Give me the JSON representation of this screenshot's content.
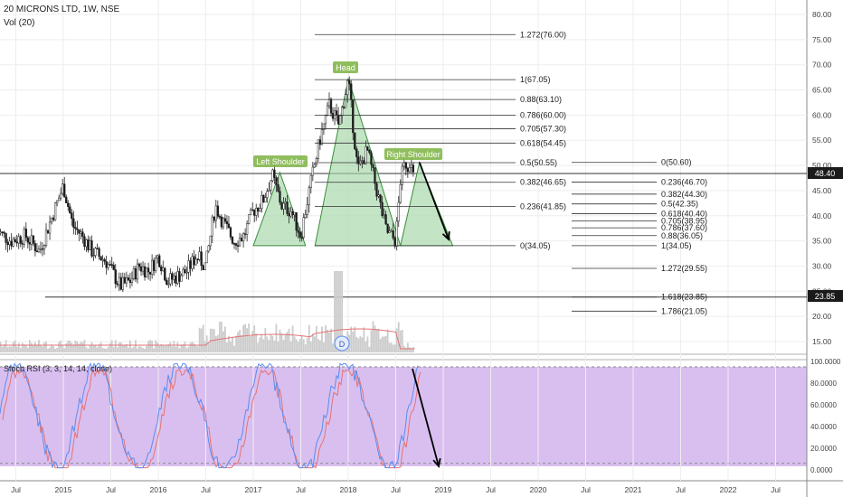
{
  "header": {
    "symbol": "20 MICRONS LTD, 1W, NSE",
    "volume_label": "Vol (20)"
  },
  "stoch_label": "Stoch RSI (3, 3, 14, 14, close)",
  "pattern_labels": {
    "head": "Head",
    "left_shoulder": "Left Shoulder",
    "right_shoulder": "Right Shoulder",
    "dividend_marker": "D"
  },
  "price_badges": [
    {
      "value": 48.4,
      "label": "48.40"
    },
    {
      "value": 23.85,
      "label": "23.85"
    }
  ],
  "chart_data": [
    {
      "type": "line",
      "title": "",
      "ylim": [
        13,
        82
      ],
      "y_ticks": [
        15,
        20,
        25,
        30,
        35,
        40,
        45,
        50,
        55,
        60,
        65,
        70,
        75,
        80
      ],
      "y_tick_labels": [
        "15.00",
        "20.00",
        "25.00",
        "30.00",
        "35.00",
        "40.00",
        "45.00",
        "50.00",
        "55.00",
        "60.00",
        "65.00",
        "70.00",
        "75.00",
        "80.00"
      ],
      "x_labels": [
        "Jul",
        "2015",
        "Jul",
        "2016",
        "Jul",
        "2017",
        "Jul",
        "2018",
        "Jul",
        "2019",
        "Jul",
        "2020",
        "Jul",
        "2021",
        "Jul",
        "2022",
        "Jul"
      ],
      "x_label_years": [
        2014.5,
        2015.0,
        2015.5,
        2016.0,
        2016.5,
        2017.0,
        2017.5,
        2018.0,
        2018.5,
        2019.0,
        2019.5,
        2020.0,
        2020.5,
        2021.0,
        2021.5,
        2022.0,
        2022.5
      ],
      "series": [
        {
          "values_x": [
            2014.3,
            2014.45,
            2014.6,
            2014.75,
            2015.0,
            2015.1,
            2015.2,
            2015.3,
            2015.45,
            2015.6,
            2015.7,
            2015.8,
            2015.9,
            2016.0,
            2016.1,
            2016.2,
            2016.3,
            2016.4,
            2016.5,
            2016.6,
            2016.7,
            2016.8,
            2016.9,
            2017.0,
            2017.1,
            2017.2,
            2017.3,
            2017.4,
            2017.5,
            2017.6,
            2017.7,
            2017.8,
            2017.9,
            2018.0,
            2018.1,
            2018.2,
            2018.3,
            2018.4,
            2018.5,
            2018.55,
            2018.6,
            2018.7
          ],
          "values_y": [
            37,
            35,
            36,
            33,
            46,
            38,
            36,
            33,
            31,
            26,
            27,
            30,
            29,
            32,
            27,
            28,
            29,
            32,
            30,
            42,
            38,
            35,
            36,
            41,
            43,
            48,
            42,
            41,
            36,
            46,
            55,
            62,
            58,
            67,
            49,
            53,
            45,
            37,
            35,
            47,
            50.6,
            48.4
          ]
        }
      ],
      "fib_upper": [
        {
          "label": "1.272(76.00)",
          "value": 76.0
        },
        {
          "label": "1(67.05)",
          "value": 67.05
        },
        {
          "label": "0.88(63.10)",
          "value": 63.1
        },
        {
          "label": "0.786(60.00)",
          "value": 60.0
        },
        {
          "label": "0.705(57.30)",
          "value": 57.3
        },
        {
          "label": "0.618(54.45)",
          "value": 54.45
        },
        {
          "label": "0.5(50.55)",
          "value": 50.55
        },
        {
          "label": "0.382(46.65)",
          "value": 46.65
        },
        {
          "label": "0.236(41.85)",
          "value": 41.85
        },
        {
          "label": "0(34.05)",
          "value": 34.05
        }
      ],
      "fib_lower": [
        {
          "label": "0(50.60)",
          "value": 50.6
        },
        {
          "label": "0.236(46.70)",
          "value": 46.7
        },
        {
          "label": "0.382(44.30)",
          "value": 44.3
        },
        {
          "label": "0.5(42.35)",
          "value": 42.35
        },
        {
          "label": "0.618(40.40)",
          "value": 40.4
        },
        {
          "label": "0.705(38.95)",
          "value": 38.95
        },
        {
          "label": "0.786(37.60)",
          "value": 37.6
        },
        {
          "label": "0.88(36.05)",
          "value": 36.05
        },
        {
          "label": "1(34.05)",
          "value": 34.05
        },
        {
          "label": "1.272(29.55)",
          "value": 29.55
        },
        {
          "label": "1.618(23.85)",
          "value": 23.85
        },
        {
          "label": "1.786(21.05)",
          "value": 21.05
        }
      ],
      "horizontal_lines": [
        48.4,
        23.85
      ]
    },
    {
      "type": "line",
      "title": "Stoch RSI (3, 3, 14, 14, close)",
      "ylim": [
        0,
        100
      ],
      "y_ticks": [
        0,
        20,
        40,
        60,
        80,
        100
      ],
      "y_tick_labels": [
        "0.0000",
        "20.0000",
        "40.0000",
        "60.0000",
        "80.0000",
        "100.0000"
      ],
      "band": [
        6,
        95
      ]
    }
  ],
  "colors": {
    "candle_up": "#4a4a4a",
    "candle_down": "#1a1a1a",
    "pattern_fill": "#a5d6a7",
    "pattern_stroke": "#388e3c",
    "stoch_fill": "#d9bff0",
    "stoch_k": "#5b8def",
    "stoch_d": "#e57373",
    "volume_ma": "#e57373",
    "grid": "#eeeeee"
  }
}
